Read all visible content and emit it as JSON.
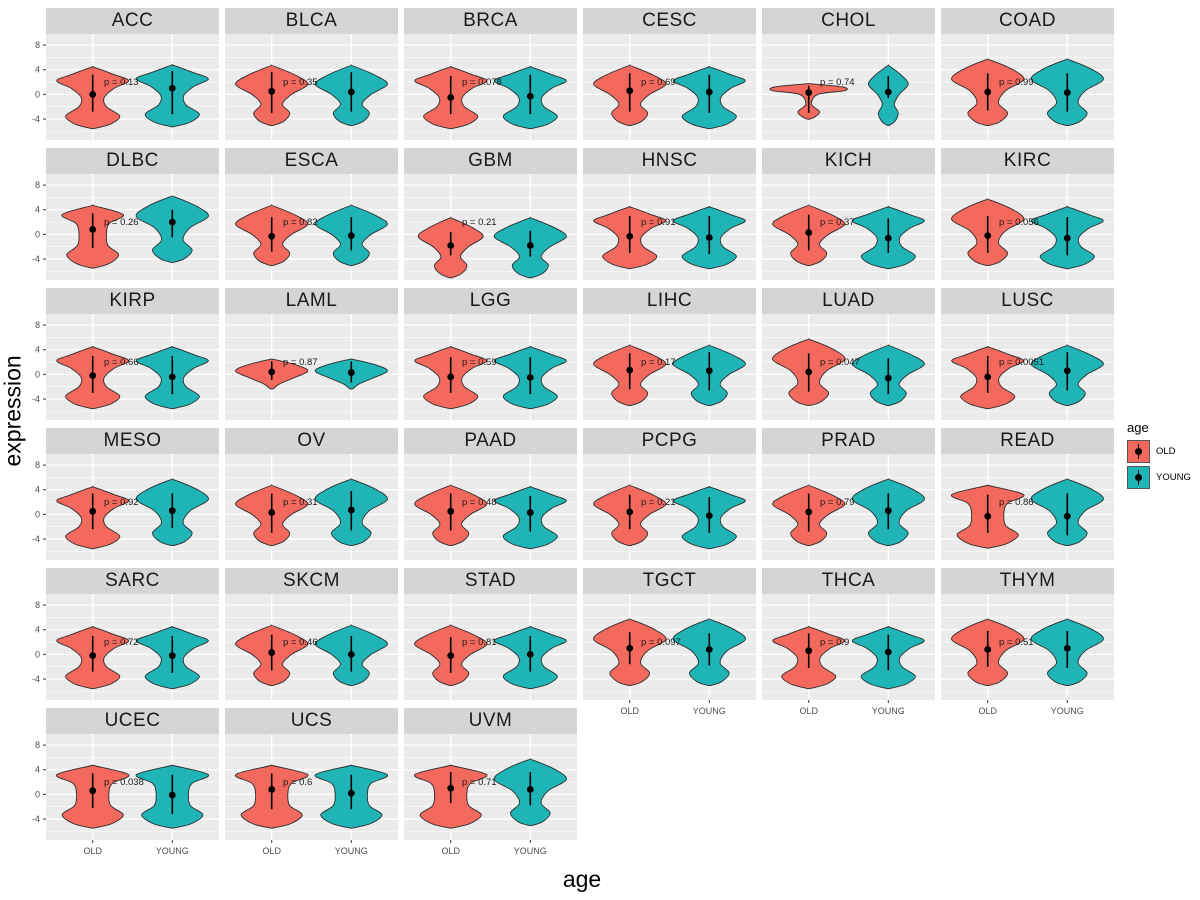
{
  "figure": {
    "y_axis_title": "expression",
    "x_axis_title": "age",
    "y_tick_labels": [
      "8",
      "4",
      "0",
      "-4"
    ],
    "x_category_labels": [
      "OLD",
      "YOUNG"
    ]
  },
  "legend": {
    "title": "age",
    "items": [
      {
        "label": "OLD",
        "color": "#f4695d"
      },
      {
        "label": "YOUNG",
        "color": "#1fb5b7"
      }
    ]
  },
  "colors": {
    "old_fill": "#f4695d",
    "young_fill": "#1fb5b7",
    "violin_stroke": "#2b2b2b",
    "panel_bg": "#ebebeb",
    "strip_bg": "#d5d5d5",
    "gridline": "#ffffff",
    "tick_text": "#4d4d4d"
  },
  "chart_data": {
    "type": "violin",
    "title": "",
    "xlabel": "age",
    "ylabel": "expression",
    "x_categories": [
      "OLD",
      "YOUNG"
    ],
    "y_ticks": [
      8,
      4,
      0,
      -4
    ],
    "ylim": [
      -7.4,
      9.8
    ],
    "grid": "on",
    "legend_position": "right",
    "facet_columns": 6,
    "facets": [
      {
        "title": "ACC",
        "p_label": "p = 0.13",
        "old": {
          "shape": "hourglass",
          "med": 0,
          "lo": -2.8,
          "hi": 3.2,
          "dy": 0,
          "ws": 1
        },
        "young": {
          "shape": "hourglass",
          "med": 1,
          "lo": -3.2,
          "hi": 3.8,
          "dy": 0.3,
          "ws": 1
        }
      },
      {
        "title": "BLCA",
        "p_label": "p = 0.35",
        "old": {
          "shape": "spindle",
          "med": 0.5,
          "lo": -3,
          "hi": 3.6,
          "dy": 0,
          "ws": 1
        },
        "young": {
          "shape": "spindle",
          "med": 0.4,
          "lo": -2.8,
          "hi": 3.6,
          "dy": 0,
          "ws": 1
        }
      },
      {
        "title": "BRCA",
        "p_label": "p = 0.078",
        "old": {
          "shape": "hourglass",
          "med": -0.5,
          "lo": -3.2,
          "hi": 3,
          "dy": 0,
          "ws": 1
        },
        "young": {
          "shape": "hourglass",
          "med": -0.3,
          "lo": -3.2,
          "hi": 3.2,
          "dy": 0,
          "ws": 1
        }
      },
      {
        "title": "CESC",
        "p_label": "p = 0.69",
        "old": {
          "shape": "spindle",
          "med": 0.6,
          "lo": -2.8,
          "hi": 3.4,
          "dy": 0,
          "ws": 1
        },
        "young": {
          "shape": "hourglass",
          "med": 0.4,
          "lo": -3,
          "hi": 3.2,
          "dy": 0,
          "ws": 1
        }
      },
      {
        "title": "CHOL",
        "p_label": "p = 0.74",
        "old": {
          "shape": "flat",
          "med": 0.3,
          "lo": -3,
          "hi": 1.4,
          "dy": 0,
          "ws": 1
        },
        "young": {
          "shape": "spindle",
          "med": 0.4,
          "lo": -0.6,
          "hi": 3,
          "dy": 0,
          "ws": 0.55
        }
      },
      {
        "title": "COAD",
        "p_label": "p = 0.99",
        "old": {
          "shape": "topblob",
          "med": 0.4,
          "lo": -2.6,
          "hi": 3.4,
          "dy": 0,
          "ws": 1
        },
        "young": {
          "shape": "topblob",
          "med": 0.3,
          "lo": -2.8,
          "hi": 3.4,
          "dy": 0,
          "ws": 1
        }
      },
      {
        "title": "DLBC",
        "p_label": "p = 0.26",
        "old": {
          "shape": "ucec",
          "med": 0.8,
          "lo": -2.2,
          "hi": 3.4,
          "dy": 0,
          "ws": 0.85
        },
        "young": {
          "shape": "topblob",
          "med": 2,
          "lo": -0.5,
          "hi": 4,
          "dy": 0.5,
          "ws": 1
        }
      },
      {
        "title": "ESCA",
        "p_label": "p = 0.82",
        "old": {
          "shape": "spindle",
          "med": -0.3,
          "lo": -2.8,
          "hi": 2.8,
          "dy": 0,
          "ws": 1
        },
        "young": {
          "shape": "spindle",
          "med": -0.2,
          "lo": -2.6,
          "hi": 2.8,
          "dy": 0,
          "ws": 1
        }
      },
      {
        "title": "GBM",
        "p_label": "p = 0.21",
        "old": {
          "shape": "spindle",
          "med": -1.8,
          "lo": -3.4,
          "hi": 0.4,
          "dy": -2,
          "ws": 0.9
        },
        "young": {
          "shape": "spindle",
          "med": -1.8,
          "lo": -3.6,
          "hi": 0.6,
          "dy": -2,
          "ws": 1
        }
      },
      {
        "title": "HNSC",
        "p_label": "p = 0.91",
        "old": {
          "shape": "hourglass",
          "med": -0.3,
          "lo": -3,
          "hi": 3,
          "dy": 0,
          "ws": 1
        },
        "young": {
          "shape": "hourglass",
          "med": -0.5,
          "lo": -3.2,
          "hi": 3,
          "dy": 0,
          "ws": 1
        }
      },
      {
        "title": "KICH",
        "p_label": "p = 0.37",
        "old": {
          "shape": "spindle",
          "med": 0.3,
          "lo": -2.6,
          "hi": 3.2,
          "dy": 0,
          "ws": 1
        },
        "young": {
          "shape": "hourglass",
          "med": -0.6,
          "lo": -3,
          "hi": 2.6,
          "dy": 0,
          "ws": 1
        }
      },
      {
        "title": "KIRC",
        "p_label": "p = 0.056",
        "old": {
          "shape": "topblob",
          "med": -0.2,
          "lo": -3,
          "hi": 3,
          "dy": 0,
          "ws": 1
        },
        "young": {
          "shape": "hourglass",
          "med": -0.6,
          "lo": -3.4,
          "hi": 2.8,
          "dy": 0,
          "ws": 1
        }
      },
      {
        "title": "KIRP",
        "p_label": "p = 0.66",
        "old": {
          "shape": "hourglass",
          "med": -0.2,
          "lo": -3,
          "hi": 3,
          "dy": 0,
          "ws": 1
        },
        "young": {
          "shape": "hourglass",
          "med": -0.4,
          "lo": -3.2,
          "hi": 3,
          "dy": 0,
          "ws": 1
        }
      },
      {
        "title": "LAML",
        "p_label": "p = 0.87",
        "old": {
          "shape": "small",
          "med": 0.4,
          "lo": -0.9,
          "hi": 2.1,
          "dy": 0,
          "ws": 1
        },
        "young": {
          "shape": "small",
          "med": 0.3,
          "lo": -1.3,
          "hi": 2.1,
          "dy": 0,
          "ws": 1
        }
      },
      {
        "title": "LGG",
        "p_label": "p = 0.59",
        "old": {
          "shape": "hourglass",
          "med": -0.4,
          "lo": -3,
          "hi": 2.8,
          "dy": 0,
          "ws": 1
        },
        "young": {
          "shape": "hourglass",
          "med": -0.5,
          "lo": -3.2,
          "hi": 2.8,
          "dy": 0,
          "ws": 1
        }
      },
      {
        "title": "LIHC",
        "p_label": "p = 0.17",
        "old": {
          "shape": "spindle",
          "med": 0.7,
          "lo": -2.4,
          "hi": 3.4,
          "dy": 0,
          "ws": 1
        },
        "young": {
          "shape": "spindle",
          "med": 0.6,
          "lo": -2.6,
          "hi": 3.6,
          "dy": 0,
          "ws": 1
        }
      },
      {
        "title": "LUAD",
        "p_label": "p = 0.047",
        "old": {
          "shape": "topblob",
          "med": 0.4,
          "lo": -2.8,
          "hi": 3.4,
          "dy": 0,
          "ws": 1
        },
        "young": {
          "shape": "spindle",
          "med": -0.6,
          "lo": -3.2,
          "hi": 2.6,
          "dy": 0,
          "ws": 1
        }
      },
      {
        "title": "LUSC",
        "p_label": "p = 0.0051",
        "old": {
          "shape": "hourglass",
          "med": -0.4,
          "lo": -3,
          "hi": 3,
          "dy": 0,
          "ws": 1
        },
        "young": {
          "shape": "spindle",
          "med": 0.6,
          "lo": -2.6,
          "hi": 3.6,
          "dy": 0,
          "ws": 1
        }
      },
      {
        "title": "MESO",
        "p_label": "p = 0.92",
        "old": {
          "shape": "hourglass",
          "med": 0.5,
          "lo": -2.4,
          "hi": 3.4,
          "dy": 0,
          "ws": 1
        },
        "young": {
          "shape": "topblob",
          "med": 0.6,
          "lo": -2.2,
          "hi": 3.4,
          "dy": 0,
          "ws": 1
        }
      },
      {
        "title": "OV",
        "p_label": "p = 0.31",
        "old": {
          "shape": "spindle",
          "med": 0.3,
          "lo": -3,
          "hi": 3.4,
          "dy": 0,
          "ws": 1
        },
        "young": {
          "shape": "topblob",
          "med": 0.7,
          "lo": -2.6,
          "hi": 3.8,
          "dy": 0,
          "ws": 1
        }
      },
      {
        "title": "PAAD",
        "p_label": "p = 0.48",
        "old": {
          "shape": "spindle",
          "med": 0.5,
          "lo": -2.6,
          "hi": 3.4,
          "dy": 0,
          "ws": 1
        },
        "young": {
          "shape": "hourglass",
          "med": 0.3,
          "lo": -2.8,
          "hi": 3,
          "dy": 0,
          "ws": 1
        }
      },
      {
        "title": "PCPG",
        "p_label": "p = 0.21",
        "old": {
          "shape": "spindle",
          "med": 0.4,
          "lo": -2.4,
          "hi": 3.2,
          "dy": 0,
          "ws": 1
        },
        "young": {
          "shape": "hourglass",
          "med": -0.2,
          "lo": -3,
          "hi": 2.8,
          "dy": 0,
          "ws": 1
        }
      },
      {
        "title": "PRAD",
        "p_label": "p = 0.79",
        "old": {
          "shape": "spindle",
          "med": 0.4,
          "lo": -2.8,
          "hi": 3.4,
          "dy": 0,
          "ws": 1
        },
        "young": {
          "shape": "topblob",
          "med": 0.6,
          "lo": -2.4,
          "hi": 3.4,
          "dy": 0,
          "ws": 1
        }
      },
      {
        "title": "READ",
        "p_label": "p = 0.86",
        "old": {
          "shape": "ucec",
          "med": -0.3,
          "lo": -3,
          "hi": 3.2,
          "dy": 0,
          "ws": 1
        },
        "young": {
          "shape": "topblob",
          "med": -0.3,
          "lo": -3.4,
          "hi": 3.4,
          "dy": 0,
          "ws": 1
        }
      },
      {
        "title": "SARC",
        "p_label": "p = 0.72",
        "old": {
          "shape": "hourglass",
          "med": -0.2,
          "lo": -2.8,
          "hi": 3,
          "dy": 0,
          "ws": 1
        },
        "young": {
          "shape": "hourglass",
          "med": -0.2,
          "lo": -3,
          "hi": 3,
          "dy": 0,
          "ws": 1
        }
      },
      {
        "title": "SKCM",
        "p_label": "p = 0.46",
        "old": {
          "shape": "spindle",
          "med": 0.3,
          "lo": -2.6,
          "hi": 3.2,
          "dy": 0,
          "ws": 1
        },
        "young": {
          "shape": "spindle",
          "med": 0,
          "lo": -2.8,
          "hi": 3,
          "dy": 0,
          "ws": 1
        }
      },
      {
        "title": "STAD",
        "p_label": "p = 0.81",
        "old": {
          "shape": "spindle",
          "med": -0.2,
          "lo": -3,
          "hi": 2.8,
          "dy": 0,
          "ws": 1
        },
        "young": {
          "shape": "hourglass",
          "med": 0,
          "lo": -2.8,
          "hi": 3,
          "dy": 0,
          "ws": 1
        }
      },
      {
        "title": "TGCT",
        "p_label": "p = 0.097",
        "old": {
          "shape": "topblob",
          "med": 1,
          "lo": -1.6,
          "hi": 3.6,
          "dy": 0,
          "ws": 1
        },
        "young": {
          "shape": "topblob",
          "med": 0.8,
          "lo": -1.8,
          "hi": 3.4,
          "dy": 0,
          "ws": 1
        }
      },
      {
        "title": "THCA",
        "p_label": "p = 0.9",
        "old": {
          "shape": "hourglass",
          "med": 0.6,
          "lo": -2.2,
          "hi": 3.4,
          "dy": 0,
          "ws": 1
        },
        "young": {
          "shape": "hourglass",
          "med": 0.4,
          "lo": -2.6,
          "hi": 3.2,
          "dy": 0,
          "ws": 1
        }
      },
      {
        "title": "THYM",
        "p_label": "p = 0.51",
        "old": {
          "shape": "topblob",
          "med": 0.8,
          "lo": -2,
          "hi": 3.8,
          "dy": 0,
          "ws": 1
        },
        "young": {
          "shape": "topblob",
          "med": 1,
          "lo": -2.2,
          "hi": 3.8,
          "dy": 0,
          "ws": 1
        }
      },
      {
        "title": "UCEC",
        "p_label": "p = 0.038",
        "old": {
          "shape": "ucec",
          "med": 0.6,
          "lo": -2.2,
          "hi": 3.4,
          "dy": 0,
          "ws": 1
        },
        "young": {
          "shape": "ucec",
          "med": -0.1,
          "lo": -3.2,
          "hi": 3.2,
          "dy": 0,
          "ws": 1
        }
      },
      {
        "title": "UCS",
        "p_label": "p = 0.6",
        "old": {
          "shape": "ucec",
          "med": 0.8,
          "lo": -2.4,
          "hi": 3.4,
          "dy": 0,
          "ws": 1
        },
        "young": {
          "shape": "ucec",
          "med": 0.2,
          "lo": -2.4,
          "hi": 3.2,
          "dy": 0,
          "ws": 1
        }
      },
      {
        "title": "UVM",
        "p_label": "p = 0.71",
        "old": {
          "shape": "ucec",
          "med": 1,
          "lo": -1.4,
          "hi": 3.6,
          "dy": 0,
          "ws": 1
        },
        "young": {
          "shape": "topblob",
          "med": 0.8,
          "lo": -1.8,
          "hi": 3.6,
          "dy": 0,
          "ws": 1
        }
      }
    ]
  }
}
